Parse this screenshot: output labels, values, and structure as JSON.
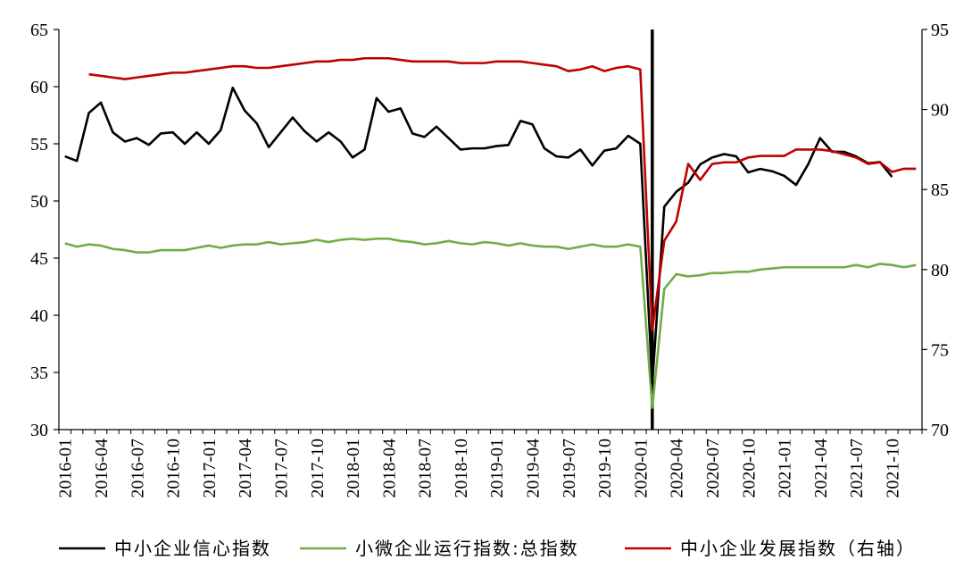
{
  "chart_data": {
    "type": "line",
    "x": [
      "2016-01",
      "2016-02",
      "2016-03",
      "2016-04",
      "2016-05",
      "2016-06",
      "2016-07",
      "2016-08",
      "2016-09",
      "2016-10",
      "2016-11",
      "2016-12",
      "2017-01",
      "2017-02",
      "2017-03",
      "2017-04",
      "2017-05",
      "2017-06",
      "2017-07",
      "2017-08",
      "2017-09",
      "2017-10",
      "2017-11",
      "2017-12",
      "2018-01",
      "2018-02",
      "2018-03",
      "2018-04",
      "2018-05",
      "2018-06",
      "2018-07",
      "2018-08",
      "2018-09",
      "2018-10",
      "2018-11",
      "2018-12",
      "2019-01",
      "2019-02",
      "2019-03",
      "2019-04",
      "2019-05",
      "2019-06",
      "2019-07",
      "2019-08",
      "2019-09",
      "2019-10",
      "2019-11",
      "2019-12",
      "2020-01",
      "2020-02",
      "2020-03",
      "2020-04",
      "2020-05",
      "2020-06",
      "2020-07",
      "2020-08",
      "2020-09",
      "2020-10",
      "2020-11",
      "2020-12",
      "2021-01",
      "2021-02",
      "2021-03",
      "2021-04",
      "2021-05",
      "2021-06",
      "2021-07",
      "2021-08",
      "2021-09",
      "2021-10",
      "2021-11",
      "2021-12"
    ],
    "x_tick_labels": [
      "2016-01",
      "2016-04",
      "2016-07",
      "2016-10",
      "2017-01",
      "2017-04",
      "2017-07",
      "2017-10",
      "2018-01",
      "2018-04",
      "2018-07",
      "2018-10",
      "2019-01",
      "2019-04",
      "2019-07",
      "2019-10",
      "2020-01",
      "2020-04",
      "2020-07",
      "2020-10",
      "2021-01",
      "2021-04",
      "2021-07",
      "2021-10"
    ],
    "y_left": {
      "ylim": [
        30,
        65
      ],
      "ticks": [
        30,
        35,
        40,
        45,
        50,
        55,
        60,
        65
      ]
    },
    "y_right": {
      "ylim": [
        70,
        95
      ],
      "ticks": [
        70,
        75,
        80,
        85,
        90,
        95
      ]
    },
    "vertical_marker_x": "2020-02",
    "grid": false,
    "legend_position": "bottom",
    "series": [
      {
        "name": "中小企业信心指数",
        "axis": "left",
        "color": "#000000",
        "values": [
          53.9,
          53.5,
          57.7,
          58.6,
          56.0,
          55.2,
          55.5,
          54.9,
          55.9,
          56.0,
          55.0,
          56.0,
          55.0,
          56.2,
          59.9,
          57.9,
          56.8,
          54.7,
          56.0,
          57.3,
          56.1,
          55.2,
          56.0,
          55.2,
          53.8,
          54.5,
          59.0,
          57.8,
          58.1,
          55.9,
          55.6,
          56.5,
          55.5,
          54.5,
          54.6,
          54.6,
          54.8,
          54.9,
          57.0,
          56.7,
          54.6,
          53.9,
          53.8,
          54.5,
          53.1,
          54.4,
          54.6,
          55.7,
          55.0,
          34.0,
          49.5,
          50.8,
          51.6,
          53.2,
          53.8,
          54.1,
          53.9,
          52.5,
          52.8,
          52.6,
          52.2,
          51.4,
          53.2,
          55.5,
          54.3,
          54.3,
          53.9,
          53.3,
          53.4,
          52.1,
          null,
          null
        ]
      },
      {
        "name": "小微企业运行指数:总指数",
        "axis": "left",
        "color": "#70ad47",
        "values": [
          46.3,
          46.0,
          46.2,
          46.1,
          45.8,
          45.7,
          45.5,
          45.5,
          45.7,
          45.7,
          45.7,
          45.9,
          46.1,
          45.9,
          46.1,
          46.2,
          46.2,
          46.4,
          46.2,
          46.3,
          46.4,
          46.6,
          46.4,
          46.6,
          46.7,
          46.6,
          46.7,
          46.7,
          46.5,
          46.4,
          46.2,
          46.3,
          46.5,
          46.3,
          46.2,
          46.4,
          46.3,
          46.1,
          46.3,
          46.1,
          46.0,
          46.0,
          45.8,
          46.0,
          46.2,
          46.0,
          46.0,
          46.2,
          46.0,
          31.9,
          42.3,
          43.6,
          43.4,
          43.5,
          43.7,
          43.7,
          43.8,
          43.8,
          44.0,
          44.1,
          44.2,
          44.2,
          44.2,
          44.2,
          44.2,
          44.2,
          44.4,
          44.2,
          44.5,
          44.4,
          44.2,
          44.4
        ]
      },
      {
        "name": "中小企业发展指数（右轴）",
        "axis": "right",
        "color": "#c00000",
        "values": [
          null,
          null,
          92.2,
          92.1,
          92.0,
          91.9,
          92.0,
          92.1,
          92.2,
          92.3,
          92.3,
          92.4,
          92.5,
          92.6,
          92.7,
          92.7,
          92.6,
          92.6,
          92.7,
          92.8,
          92.9,
          93.0,
          93.0,
          93.1,
          93.1,
          93.2,
          93.2,
          93.2,
          93.1,
          93.0,
          93.0,
          93.0,
          93.0,
          92.9,
          92.9,
          92.9,
          93.0,
          93.0,
          93.0,
          92.9,
          92.8,
          92.7,
          92.4,
          92.5,
          92.7,
          92.4,
          92.6,
          92.7,
          92.5,
          76.2,
          81.8,
          83.0,
          86.6,
          85.6,
          86.6,
          86.7,
          86.7,
          87.0,
          87.1,
          87.1,
          87.1,
          87.5,
          87.5,
          87.5,
          87.4,
          87.2,
          87.0,
          86.6,
          86.7,
          86.1,
          86.3,
          86.3
        ]
      }
    ]
  }
}
